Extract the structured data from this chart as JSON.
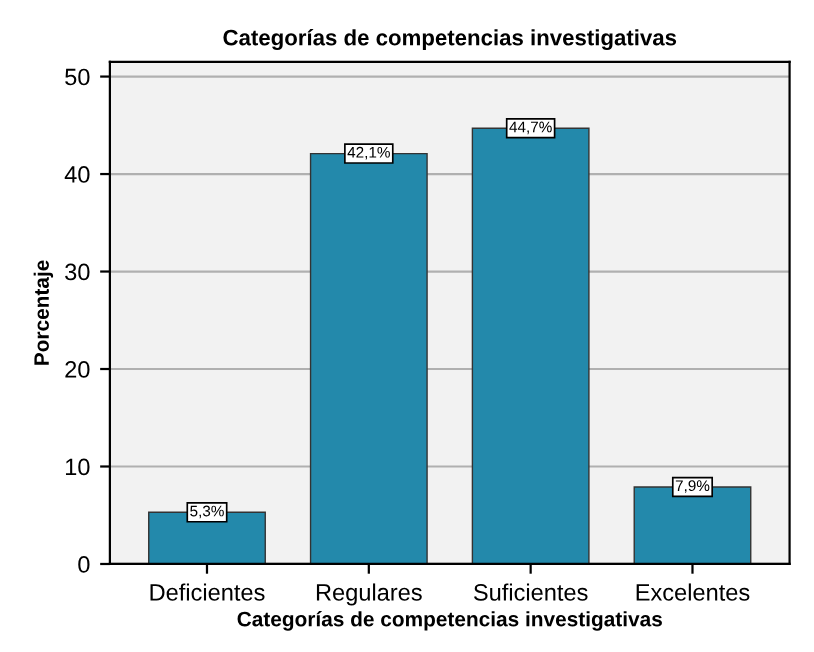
{
  "chart_data": {
    "type": "bar",
    "title": "Categorías de competencias investigativas",
    "xlabel": "Categorías de competencias investigativas",
    "ylabel": "Porcentaje",
    "categories": [
      "Deficientes",
      "Regulares",
      "Suficientes",
      "Excelentes"
    ],
    "values": [
      5.3,
      42.1,
      44.7,
      7.9
    ],
    "value_labels": [
      "5,3%",
      "42,1%",
      "44,7%",
      "7,9%"
    ],
    "color": "#2389ab",
    "ylim": [
      0,
      51.5
    ],
    "yticks": [
      0,
      10,
      20,
      30,
      40,
      50
    ],
    "grid": "y"
  }
}
